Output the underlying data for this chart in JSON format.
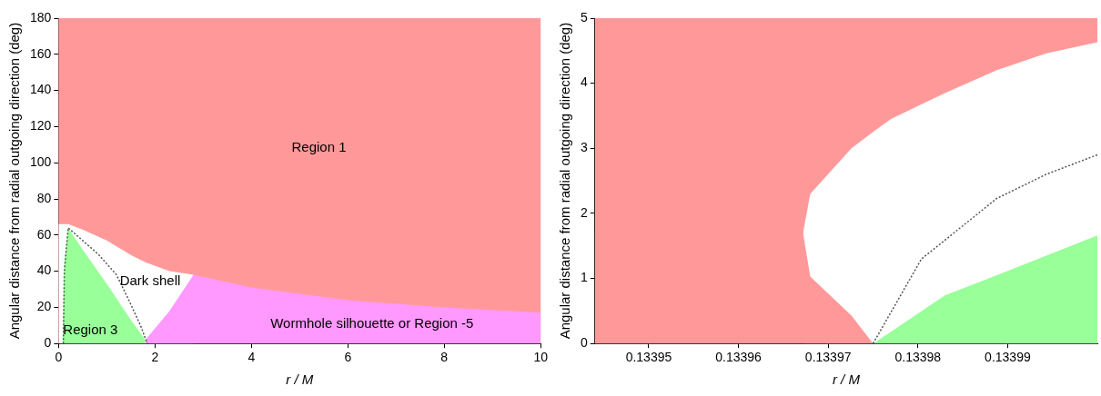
{
  "chart_data": [
    {
      "type": "area",
      "stacked": true,
      "xlabel": "r / M",
      "ylabel": "Angular distance from radial outgoing direction (deg)",
      "x": [
        0,
        0.08,
        0.12,
        0.2,
        0.5,
        1,
        1.5,
        1.8,
        2.3,
        2.8,
        4,
        6,
        8,
        10
      ],
      "xlim": [
        0,
        10
      ],
      "xticks": [
        0,
        2,
        4,
        6,
        8,
        10
      ],
      "ylim": [
        0,
        180
      ],
      "yticks": [
        0,
        20,
        40,
        60,
        80,
        100,
        120,
        140,
        160,
        180
      ],
      "grid": false,
      "legend": false,
      "bands": [
        {
          "axis": "y",
          "from": 0,
          "to": 180,
          "color": "#ff9999"
        }
      ],
      "series": [
        {
          "color": "#99ff99",
          "values": [
            0,
            0,
            45,
            64,
            52,
            33,
            13,
            2,
            null,
            null,
            null,
            null,
            null,
            null
          ]
        },
        {
          "color": "#ff99ff",
          "values": [
            null,
            null,
            null,
            null,
            null,
            null,
            null,
            0,
            18,
            38,
            31,
            24,
            20,
            17
          ]
        },
        {
          "color": "#ffffff",
          "values": [
            66,
            66,
            21,
            2,
            11,
            24,
            36,
            43,
            22,
            0,
            null,
            null,
            null,
            null
          ]
        },
        {
          "type": "line",
          "color": "#555555",
          "line_style": "dotted",
          "marker": "none",
          "x": [
            0.1,
            0.12,
            0.2,
            0.84,
            1.2,
            1.44,
            1.7,
            1.84
          ],
          "values": [
            0,
            40,
            64,
            49,
            38,
            25,
            10,
            0
          ]
        }
      ],
      "annotations": [
        "Region 1",
        "Dark shell",
        "Region 3",
        "Wormhole silhouette or Region -5"
      ]
    },
    {
      "type": "area",
      "stacked": true,
      "xlabel": "r / M",
      "ylabel": "Angular distance from radial outgoing direction (deg)",
      "x": [
        0.133944,
        0.1339672,
        0.133968,
        0.1339726,
        0.133975,
        0.133977,
        0.133983,
        0.1339888,
        0.1339943,
        0.134
      ],
      "xlim": [
        0.133944,
        0.134
      ],
      "xticks": [
        0.13395,
        0.13396,
        0.13397,
        0.13398,
        0.13399
      ],
      "ylim": [
        0,
        5
      ],
      "yticks": [
        0,
        1,
        2,
        3,
        4,
        5
      ],
      "grid": false,
      "legend": false,
      "bands": [
        {
          "axis": "y",
          "from": 0,
          "to": 5,
          "color": "#ff9999"
        }
      ],
      "series": [
        {
          "color": "#ff9999",
          "values": [
            1.7,
            1.7,
            1.03,
            0.43,
            0,
            null,
            null,
            null,
            null,
            null
          ]
        },
        {
          "color": "#99ff99",
          "values": [
            null,
            null,
            null,
            null,
            0,
            0.18,
            0.74,
            1.05,
            1.35,
            1.66
          ]
        },
        {
          "color": "#ffffff",
          "values": [
            null,
            0,
            1.27,
            2.57,
            3.25,
            3.27,
            3.11,
            3.15,
            3.11,
            2.97
          ]
        },
        {
          "type": "line",
          "color": "#555555",
          "line_style": "dotted",
          "marker": "none",
          "x": [
            0.133975,
            0.1339804,
            0.1339888,
            0.1339943,
            0.134
          ],
          "values": [
            0,
            1.3,
            2.23,
            2.6,
            2.9
          ]
        }
      ]
    }
  ]
}
